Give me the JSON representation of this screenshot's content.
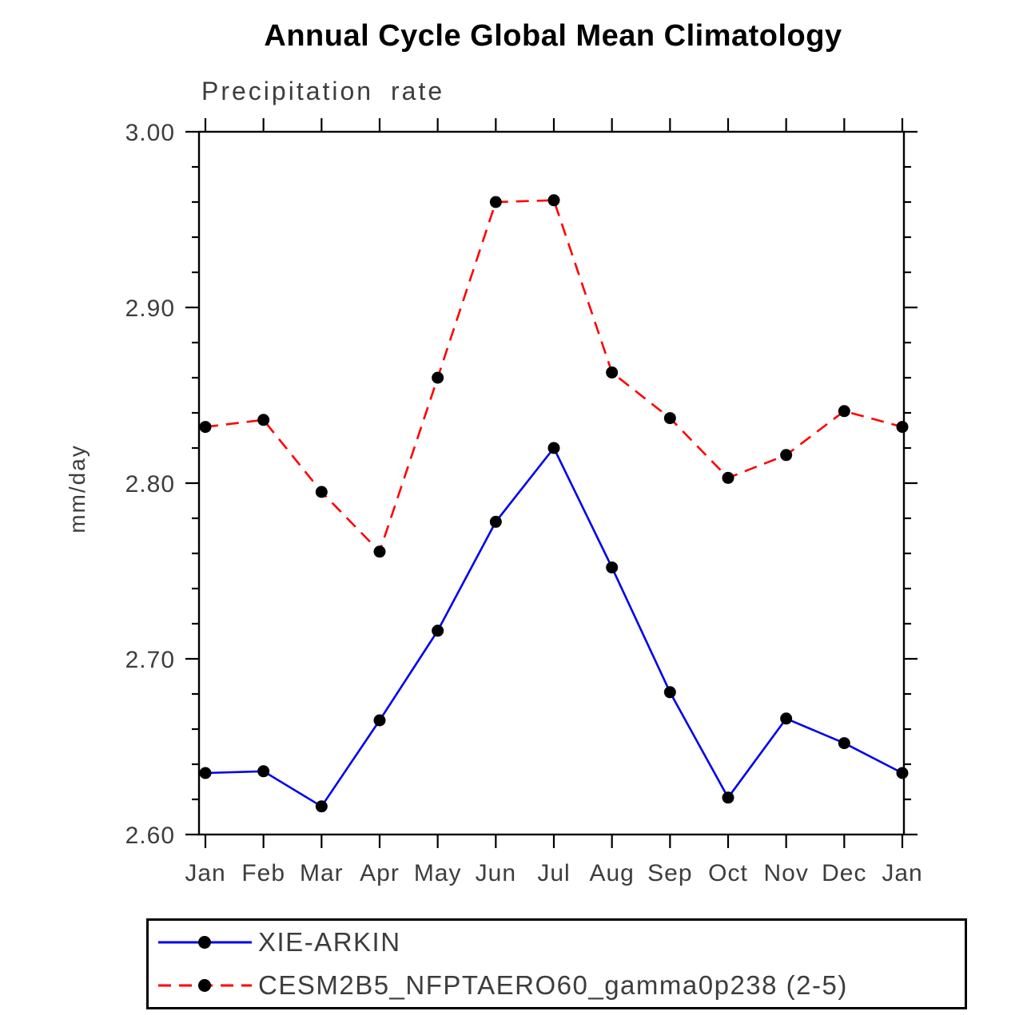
{
  "title": "Annual Cycle Global Mean Climatology",
  "subtitle": "Precipitation rate",
  "ylabel": "mm/day",
  "legend": {
    "entries": [
      {
        "label": "XIE-ARKIN",
        "color": "#0000ee",
        "dash": "solid"
      },
      {
        "label": "CESM2B5_NFPTAERO60_gamma0p238 (2-5)",
        "color": "#ff0000",
        "dash": "dashed"
      }
    ]
  },
  "chart_data": {
    "type": "line",
    "title": "Annual Cycle Global Mean Climatology",
    "subtitle": "Precipitation rate",
    "xlabel": "",
    "ylabel": "mm/day",
    "categories": [
      "Jan",
      "Feb",
      "Mar",
      "Apr",
      "May",
      "Jun",
      "Jul",
      "Aug",
      "Sep",
      "Oct",
      "Nov",
      "Dec",
      "Jan"
    ],
    "series": [
      {
        "name": "XIE-ARKIN",
        "color": "#0000ee",
        "style": "solid",
        "marker": "circle",
        "values": [
          2.635,
          2.636,
          2.616,
          2.665,
          2.716,
          2.778,
          2.82,
          2.752,
          2.681,
          2.621,
          2.666,
          2.652,
          2.635
        ]
      },
      {
        "name": "CESM2B5_NFPTAERO60_gamma0p238 (2-5)",
        "color": "#ff0000",
        "style": "dashed",
        "marker": "circle",
        "values": [
          2.832,
          2.836,
          2.795,
          2.761,
          2.86,
          2.96,
          2.961,
          2.863,
          2.837,
          2.803,
          2.816,
          2.841,
          2.832
        ]
      }
    ],
    "ylim": [
      2.6,
      3.0
    ],
    "ytick_step": 0.1,
    "ytick_minor_step": 0.02,
    "ytick_labels": [
      "2.60",
      "2.70",
      "2.80",
      "2.90",
      "3.00"
    ],
    "marker_color": "#000000",
    "grid": false,
    "legend_position": "bottom"
  }
}
